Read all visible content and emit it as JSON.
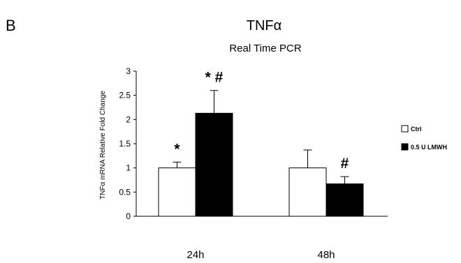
{
  "panel_label": "B",
  "chart_data": {
    "type": "bar",
    "title": "TNFα",
    "subtitle": "Real Time PCR",
    "ylabel": "TNFα mRNA Relative Fold Change",
    "xlabel": "",
    "ylim": [
      0,
      3
    ],
    "yticks": [
      0,
      0.5,
      1,
      1.5,
      2,
      2.5,
      3
    ],
    "ytick_labels": [
      "0",
      "0.5",
      "1",
      "1.5",
      "2",
      "2.5",
      "3"
    ],
    "categories": [
      "24h",
      "48h"
    ],
    "series": [
      {
        "name": "Ctrl",
        "color": "#ffffff",
        "values": [
          1.0,
          1.0
        ],
        "error": [
          0.12,
          0.37
        ]
      },
      {
        "name": "0.5 U LMWH",
        "color": "#000000",
        "values": [
          2.13,
          0.67
        ],
        "error": [
          0.47,
          0.15
        ]
      }
    ],
    "annotations": [
      {
        "text": "*",
        "category": "24h",
        "series": "Ctrl"
      },
      {
        "text": "* #",
        "category": "24h",
        "series": "0.5 U LMWH"
      },
      {
        "text": "#",
        "category": "48h",
        "series": "0.5 U LMWH"
      }
    ],
    "legend_position": "right",
    "grid": false
  }
}
